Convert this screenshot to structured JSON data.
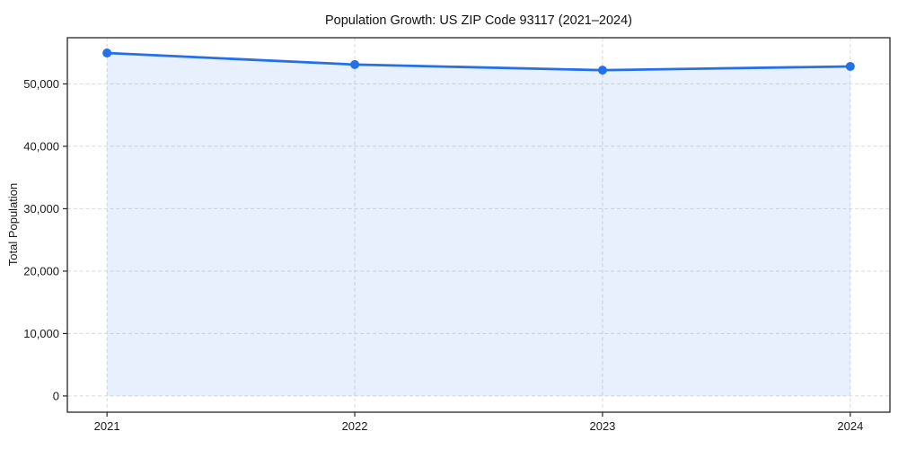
{
  "chart_data": {
    "type": "area",
    "title": "Population Growth: US ZIP Code 93117 (2021–2024)",
    "xlabel": "",
    "ylabel": "Total Population",
    "x": [
      2021,
      2022,
      2023,
      2024
    ],
    "series": [
      {
        "name": "Total Population",
        "values": [
          54950,
          53100,
          52200,
          52800
        ]
      }
    ],
    "xticks": [
      2021,
      2022,
      2023,
      2024
    ],
    "xtick_labels": [
      "2021",
      "2022",
      "2023",
      "2024"
    ],
    "yticks": [
      0,
      10000,
      20000,
      30000,
      40000,
      50000
    ],
    "ytick_labels": [
      "0",
      "10,000",
      "20,000",
      "30,000",
      "40,000",
      "50,000"
    ],
    "xlim": [
      2020.84,
      2024.16
    ],
    "ylim": [
      -2600,
      57400
    ],
    "fill_baseline": 0,
    "grid": true,
    "grid_style": "dashed",
    "legend": "none",
    "colors": {
      "line": "#2470e8",
      "marker": "#2470e8",
      "fill": "#2470e8",
      "fill_opacity": 0.1,
      "grid": "#d9d9d9",
      "spine": "#262626",
      "text": "#1a1a1a",
      "background": "#ffffff"
    }
  }
}
